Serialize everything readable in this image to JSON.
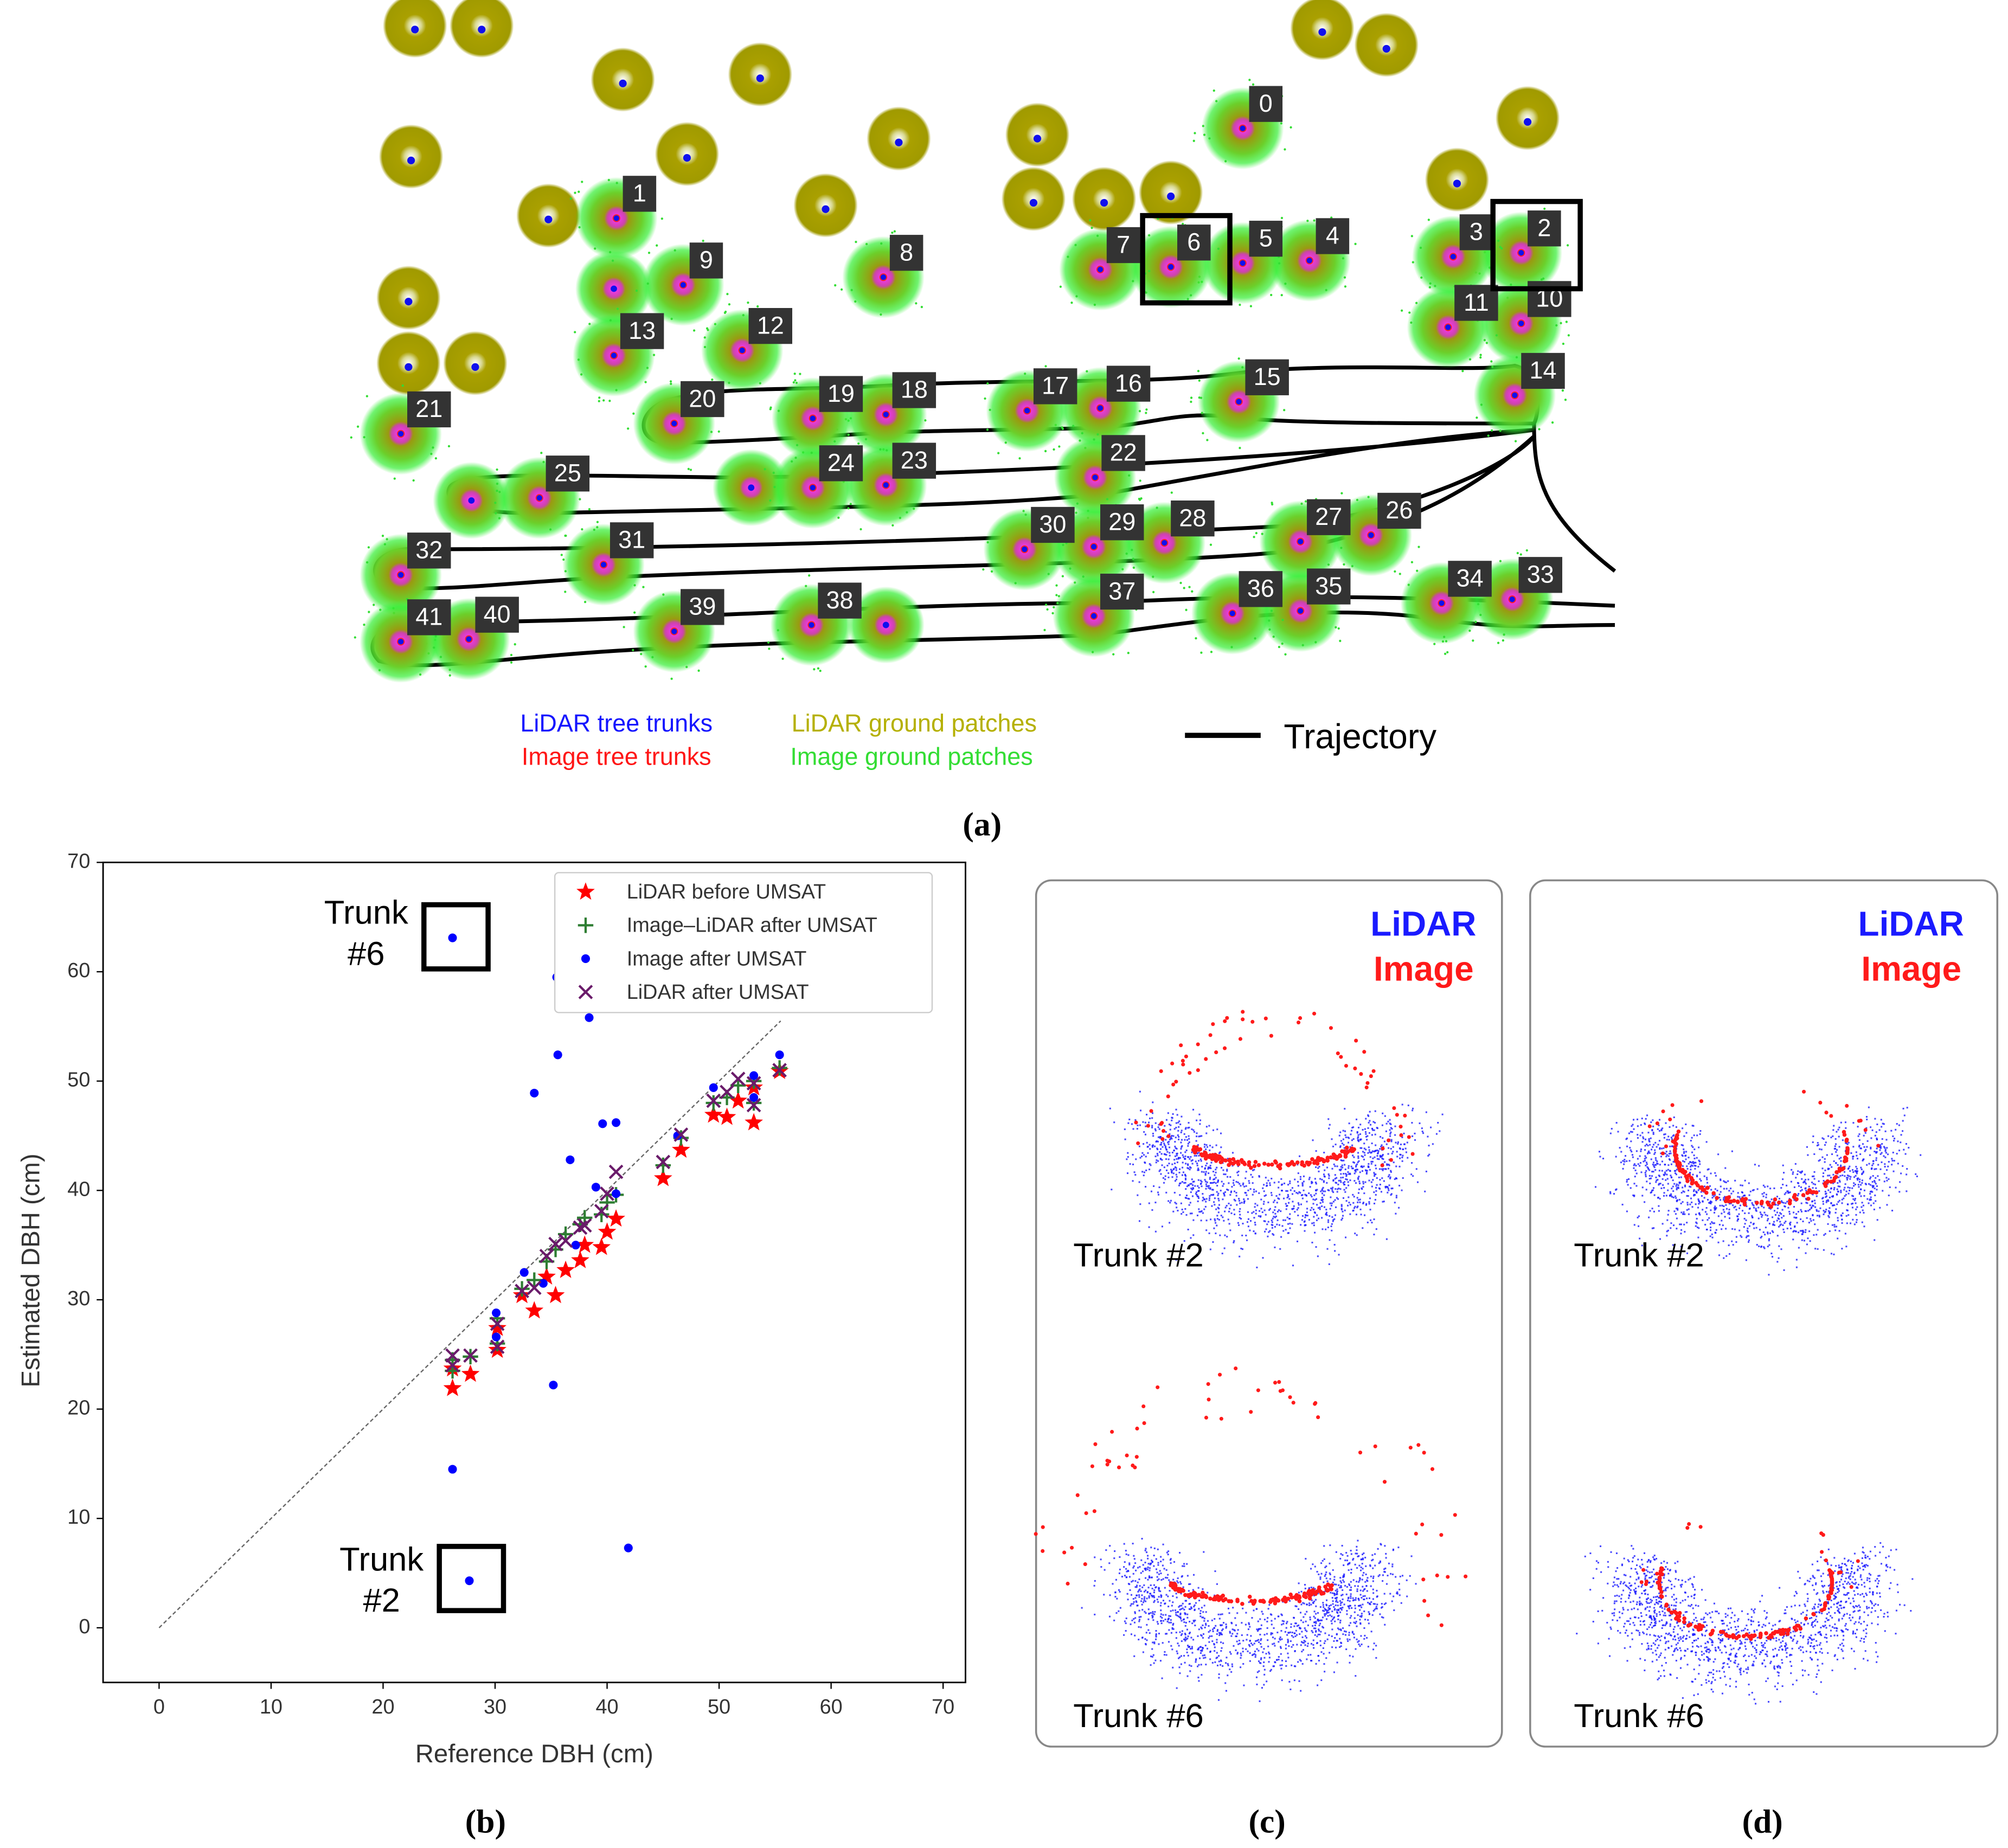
{
  "panel_a": {
    "tree_labels": [
      "0",
      "1",
      "2",
      "3",
      "4",
      "5",
      "6",
      "7",
      "8",
      "9",
      "10",
      "11",
      "12",
      "13",
      "14",
      "15",
      "16",
      "17",
      "18",
      "19",
      "20",
      "21",
      "22",
      "23",
      "24",
      "25",
      "26",
      "27",
      "28",
      "29",
      "30",
      "31",
      "32",
      "33",
      "34",
      "35",
      "36",
      "37",
      "38",
      "39",
      "40",
      "41"
    ],
    "legend": {
      "lidar_trunks": "LiDAR tree trunks",
      "image_trunks": "Image tree trunks",
      "lidar_ground": "LiDAR ground patches",
      "image_ground": "Image ground patches",
      "trajectory": "Trajectory"
    }
  },
  "chart_data": {
    "type": "scatter",
    "xlabel": "Reference DBH (cm)",
    "ylabel": "Estimated DBH (cm)",
    "xlim": [
      -5,
      72
    ],
    "ylim": [
      -5,
      70
    ],
    "xticks": [
      0,
      10,
      20,
      30,
      40,
      50,
      60,
      70
    ],
    "yticks": [
      0,
      10,
      20,
      30,
      40,
      50,
      60,
      70
    ],
    "legend": "upper right",
    "diagonal": {
      "x": [
        0,
        55.5
      ],
      "values": [
        0,
        55.5
      ]
    },
    "series": [
      {
        "name": "LiDAR before UMSAT",
        "color": "#ff0000",
        "marker": "star",
        "x": [
          26.2,
          26.2,
          27.8,
          30.2,
          30.2,
          32.4,
          33.5,
          35.4,
          36.3,
          37.6,
          39.5,
          40.8,
          40,
          38,
          45,
          46.6,
          49.5,
          50.7,
          51.7,
          53.1,
          53.1,
          55.4,
          34.6
        ],
        "values": [
          21.9,
          23.7,
          23.2,
          25.4,
          27.4,
          30.4,
          29,
          30.4,
          32.7,
          33.6,
          34.8,
          37.4,
          36.2,
          35,
          41.1,
          43.7,
          46.9,
          46.7,
          48.2,
          46.2,
          49.4,
          50.9,
          32.1
        ]
      },
      {
        "name": "Image–LiDAR after UMSAT",
        "color": "#2e7d32",
        "marker": "plus",
        "x": [
          26.2,
          26.2,
          27.8,
          30.2,
          30.2,
          32.4,
          33.5,
          35.4,
          36.3,
          37.6,
          39.5,
          40.8,
          40,
          38,
          45,
          46.6,
          49.5,
          50.7,
          51.7,
          53.1,
          53.1,
          55.4,
          34.6
        ],
        "values": [
          23.5,
          24.5,
          24.8,
          26,
          28.3,
          31,
          31.8,
          34.6,
          36,
          36.9,
          37.8,
          39.6,
          38.9,
          37.5,
          42.3,
          44.8,
          48,
          48.5,
          49.6,
          48,
          50,
          51.2,
          33.5
        ]
      },
      {
        "name": "Image after UMSAT",
        "color": "#0000ff",
        "marker": "dot",
        "x": [
          26.2,
          26.2,
          27.7,
          35.5,
          38.4,
          35.6,
          33.5,
          39.6,
          40.8,
          36.7,
          35.2,
          41.9,
          55.4,
          49.5,
          30.1,
          30.1,
          32.6,
          39,
          46.3,
          53.1,
          53.1,
          40.8,
          37.2,
          34.3
        ],
        "values": [
          14.5,
          63.1,
          4.3,
          59.5,
          55.8,
          52.4,
          48.9,
          46.1,
          46.2,
          42.8,
          22.2,
          7.3,
          52.4,
          49.4,
          28.8,
          26.6,
          32.5,
          40.3,
          45,
          50.5,
          48.5,
          39.7,
          35,
          31.5
        ]
      },
      {
        "name": "LiDAR after UMSAT",
        "color": "#6a1b6a",
        "marker": "x",
        "x": [
          26.2,
          26.2,
          27.8,
          30.2,
          30.2,
          32.4,
          33.5,
          35.4,
          36.3,
          37.6,
          39.5,
          40.8,
          40,
          38,
          45,
          46.6,
          49.5,
          50.7,
          51.7,
          53.1,
          53.1,
          55.4,
          34.6
        ],
        "values": [
          24,
          24.9,
          24.9,
          25.7,
          27.8,
          30.8,
          31.1,
          35.1,
          35.4,
          36.6,
          38.1,
          41.7,
          39.7,
          36.8,
          42.6,
          45.1,
          48.2,
          49,
          50.2,
          47.8,
          49.8,
          51,
          34
        ]
      }
    ],
    "annotations": [
      {
        "lines": [
          "Trunk",
          "#6"
        ]
      },
      {
        "lines": [
          "Trunk",
          "#2"
        ]
      }
    ]
  },
  "panel_c": {
    "legend": [
      "LiDAR",
      "Image"
    ],
    "trunks": [
      "Trunk #2",
      "Trunk #6"
    ]
  },
  "panel_d": {
    "legend": [
      "LiDAR",
      "Image"
    ],
    "trunks": [
      "Trunk #2",
      "Trunk #6"
    ]
  },
  "captions": [
    "(a)",
    "(b)",
    "(c)",
    "(d)"
  ]
}
